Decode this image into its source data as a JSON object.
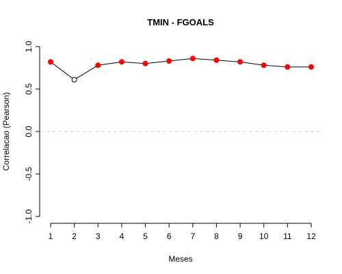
{
  "chart_data": {
    "type": "line",
    "title": "TMIN - FGOALS",
    "xlabel": "Meses",
    "ylabel": "Correlacao (Pearson)",
    "x": [
      1,
      2,
      3,
      4,
      5,
      6,
      7,
      8,
      9,
      10,
      11,
      12
    ],
    "x_tick_labels": [
      "1",
      "2",
      "3",
      "4",
      "5",
      "6",
      "7",
      "8",
      "9",
      "10",
      "11",
      "12"
    ],
    "y_ticks": [
      -1.0,
      -0.5,
      0.0,
      0.5,
      1.0
    ],
    "y_tick_labels": [
      "-1.0",
      "-0.5",
      "0.0",
      "0.5",
      "1.0"
    ],
    "xlim": [
      1,
      12
    ],
    "ylim": [
      -1.0,
      1.0
    ],
    "series": [
      {
        "values": [
          0.82,
          0.61,
          0.78,
          0.82,
          0.8,
          0.83,
          0.86,
          0.84,
          0.82,
          0.78,
          0.76,
          0.76
        ],
        "marker_filled": [
          true,
          false,
          true,
          true,
          true,
          true,
          true,
          true,
          true,
          true,
          true,
          true
        ]
      }
    ],
    "reference_line": {
      "y": 0.0,
      "style": "dashed"
    },
    "grid": false,
    "colors": {
      "line": "#000000",
      "marker_filled": "#ff0000",
      "marker_open": "#000000",
      "reference_line": "#d3d3d3"
    }
  }
}
